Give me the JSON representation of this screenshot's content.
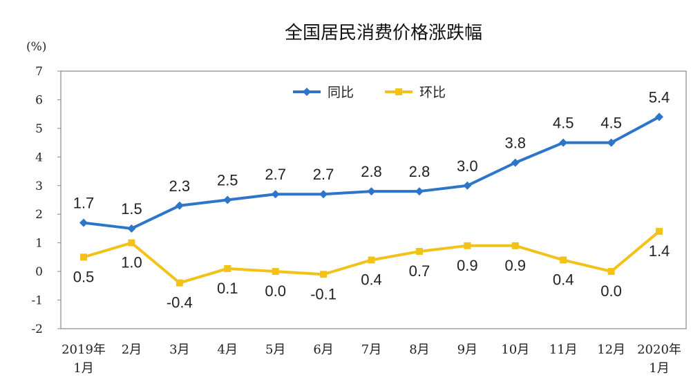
{
  "chart_data": {
    "type": "line",
    "title": "全国居民消费价格涨跌幅",
    "unit_label": "(%)",
    "x_labels": [
      [
        "2019年",
        "1月"
      ],
      [
        "2月"
      ],
      [
        "3月"
      ],
      [
        "4月"
      ],
      [
        "5月"
      ],
      [
        "6月"
      ],
      [
        "7月"
      ],
      [
        "8月"
      ],
      [
        "9月"
      ],
      [
        "10月"
      ],
      [
        "11月"
      ],
      [
        "12月"
      ],
      [
        "2020年",
        "1月"
      ]
    ],
    "ylim": [
      -2,
      7
    ],
    "yticks": [
      -2,
      -1,
      0,
      1,
      2,
      3,
      4,
      5,
      6,
      7
    ],
    "legend_position": "top-center",
    "grid": false,
    "series": [
      {
        "name": "同比",
        "color": "#2E75C9",
        "marker": "diamond",
        "values": [
          1.7,
          1.5,
          2.3,
          2.5,
          2.7,
          2.7,
          2.8,
          2.8,
          3.0,
          3.8,
          4.5,
          4.5,
          5.4
        ],
        "labels": [
          "1.7",
          "1.5",
          "2.3",
          "2.5",
          "2.7",
          "2.7",
          "2.8",
          "2.8",
          "3.0",
          "3.8",
          "4.5",
          "4.5",
          "5.4"
        ]
      },
      {
        "name": "环比",
        "color": "#F2C218",
        "marker": "square",
        "values": [
          0.5,
          1.0,
          -0.4,
          0.1,
          0.0,
          -0.1,
          0.4,
          0.7,
          0.9,
          0.9,
          0.4,
          0.0,
          1.4
        ],
        "labels": [
          "0.5",
          "1.0",
          "-0.4",
          "0.1",
          "0.0",
          "-0.1",
          "0.4",
          "0.7",
          "0.9",
          "0.9",
          "0.4",
          "0.0",
          "1.4"
        ]
      }
    ]
  }
}
